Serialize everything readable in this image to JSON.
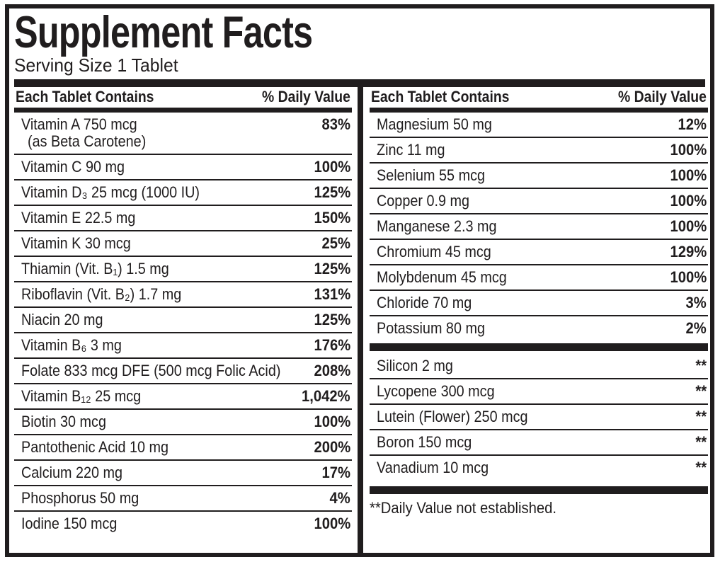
{
  "label": {
    "title": "Supplement Facts",
    "serving_size": "Serving Size 1 Tablet"
  },
  "columns": [
    {
      "header": {
        "contains": "Each Tablet Contains",
        "daily_value": "% Daily Value"
      },
      "rows": [
        {
          "name": "Vitamin A 750 mcg",
          "name_line2": "(as Beta Carotene)",
          "value": "83%"
        },
        {
          "name": "Vitamin C 90 mg",
          "value": "100%"
        },
        {
          "name": "Vitamin D₃ 25 mcg (1000 IU)",
          "value": "125%"
        },
        {
          "name": "Vitamin E 22.5 mg",
          "value": "150%"
        },
        {
          "name": "Vitamin K 30 mcg",
          "value": "25%"
        },
        {
          "name": "Thiamin (Vit. B₁) 1.5 mg",
          "value": "125%"
        },
        {
          "name": "Riboflavin (Vit. B₂) 1.7 mg",
          "value": "131%"
        },
        {
          "name": "Niacin 20 mg",
          "value": "125%"
        },
        {
          "name": "Vitamin B₆ 3 mg",
          "value": "176%"
        },
        {
          "name": "Folate 833 mcg DFE (500 mcg Folic Acid)",
          "value": "208%"
        },
        {
          "name": "Vitamin B₁₂ 25 mcg",
          "value": "1,042%"
        },
        {
          "name": "Biotin 30 mcg",
          "value": "100%"
        },
        {
          "name": "Pantothenic Acid 10 mg",
          "value": "200%"
        },
        {
          "name": "Calcium 220 mg",
          "value": "17%"
        },
        {
          "name": "Phosphorus 50 mg",
          "value": "4%"
        },
        {
          "name": "Iodine 150 mcg",
          "value": "100%"
        }
      ]
    },
    {
      "header": {
        "contains": "Each Tablet Contains",
        "daily_value": "% Daily Value"
      },
      "rows": [
        {
          "name": "Magnesium 50 mg",
          "value": "12%"
        },
        {
          "name": "Zinc 11 mg",
          "value": "100%"
        },
        {
          "name": "Selenium 55 mcg",
          "value": "100%"
        },
        {
          "name": "Copper 0.9 mg",
          "value": "100%"
        },
        {
          "name": "Manganese 2.3 mg",
          "value": "100%"
        },
        {
          "name": "Chromium 45 mcg",
          "value": "129%"
        },
        {
          "name": "Molybdenum 45 mcg",
          "value": "100%"
        },
        {
          "name": "Chloride 70 mg",
          "value": "3%"
        },
        {
          "name": "Potassium 80 mg",
          "value": "2%"
        }
      ],
      "rows_not_established": [
        {
          "name": "Silicon 2 mg",
          "value": "**"
        },
        {
          "name": "Lycopene 300 mcg",
          "value": "**"
        },
        {
          "name": "Lutein (Flower) 250 mcg",
          "value": "**"
        },
        {
          "name": "Boron 150 mcg",
          "value": "**"
        },
        {
          "name": "Vanadium 10 mcg",
          "value": "**"
        }
      ],
      "footnote": "**Daily Value not established."
    }
  ],
  "colors": {
    "ink": "#201d1e",
    "paper": "#ffffff"
  }
}
